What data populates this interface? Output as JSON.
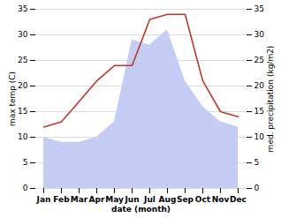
{
  "chart_data": {
    "type": "line",
    "xlabel": "date (month)",
    "ylabel": "max temp (C)",
    "y2label": "med. precipitation (kg/m2)",
    "categories": [
      "Jan",
      "Feb",
      "Mar",
      "Apr",
      "May",
      "Jun",
      "Jul",
      "Aug",
      "Sep",
      "Oct",
      "Nov",
      "Dec"
    ],
    "series": [
      {
        "type": "area",
        "axis": "y2",
        "color": "#c5cdf5",
        "values": [
          10,
          9,
          9,
          10,
          13,
          29,
          28,
          31,
          21,
          16,
          13,
          12
        ]
      },
      {
        "type": "line",
        "color": "#c0392b",
        "values": [
          12,
          13,
          17,
          21,
          24,
          24,
          33,
          34,
          34,
          21,
          15,
          14
        ]
      }
    ],
    "ylim": [
      0,
      35
    ],
    "yticks": [
      0,
      5,
      10,
      15,
      20,
      25,
      30,
      35
    ],
    "y2lim": [
      0,
      35
    ],
    "y2ticks": [
      0,
      5,
      10,
      15,
      20,
      25,
      30,
      35
    ],
    "grid": true
  }
}
